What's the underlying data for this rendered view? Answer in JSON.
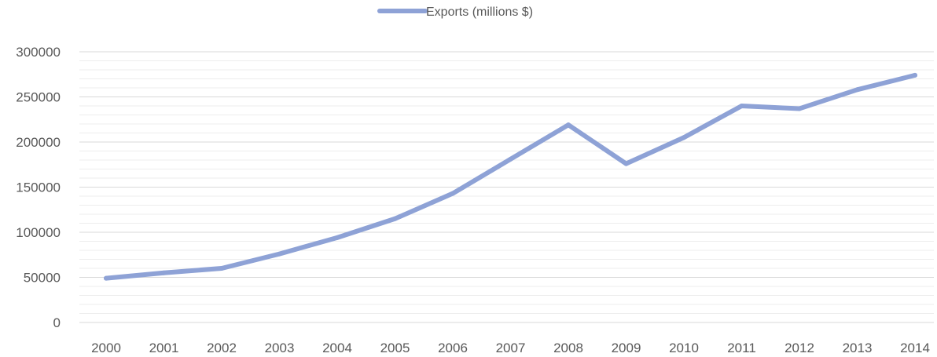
{
  "chart_data": {
    "type": "line",
    "title": "",
    "xlabel": "",
    "ylabel": "",
    "legend": {
      "position": "top-center",
      "entries": [
        "Exports (millions $)"
      ]
    },
    "x": [
      2000,
      2001,
      2002,
      2003,
      2004,
      2005,
      2006,
      2007,
      2008,
      2009,
      2010,
      2011,
      2012,
      2013,
      2014
    ],
    "series": [
      {
        "name": "Exports (millions $)",
        "color": "#8EA2D6",
        "values": [
          49000,
          55000,
          60000,
          76000,
          94000,
          115000,
          143000,
          181000,
          219000,
          176000,
          205000,
          240000,
          237000,
          258000,
          274000
        ]
      }
    ],
    "ylim": [
      0,
      300000
    ],
    "y_ticks": [
      0,
      50000,
      100000,
      150000,
      200000,
      250000,
      300000
    ],
    "y_tick_labels": [
      "0",
      "50000",
      "100000",
      "150000",
      "200000",
      "250000",
      "300000"
    ],
    "grid": {
      "major": true,
      "minor": true,
      "major_color": "#D9D9D9",
      "minor_color": "#EDEDED"
    }
  }
}
